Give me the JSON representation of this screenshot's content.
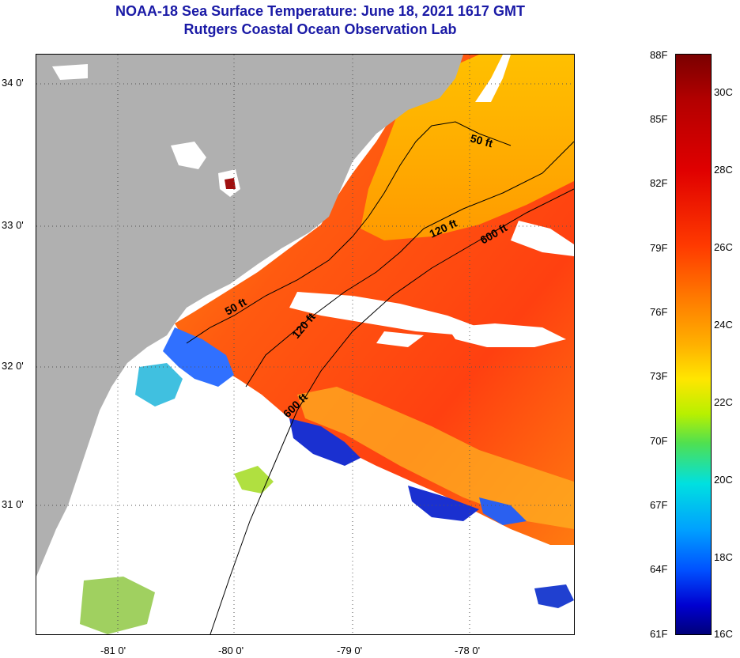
{
  "title": {
    "line1": "NOAA-18 Sea Surface Temperature:  June 18, 2021 1617 GMT",
    "line2": "Rutgers Coastal Ocean Observation Lab"
  },
  "map": {
    "lat_labels": [
      "34 0'",
      "33 0'",
      "32 0'",
      "31 0'"
    ],
    "lon_labels": [
      "-81 0'",
      "-80 0'",
      "-79 0'",
      "-78 0'"
    ],
    "contour_labels": {
      "north_50": "50 ft",
      "north_120": "120 ft",
      "north_600": "600 ft",
      "south_50": "50 ft",
      "south_120": "120 ft",
      "south_600": "600 ft"
    },
    "colors": {
      "land": "#b0b0b0",
      "cloud": "#ffffff",
      "warm_water": "#ff6a10",
      "cool_water": "#2060ff"
    }
  },
  "colorbar": {
    "fahrenheit": [
      "88F",
      "85F",
      "82F",
      "79F",
      "76F",
      "73F",
      "70F",
      "67F",
      "64F",
      "61F"
    ],
    "celsius": [
      "30C",
      "28C",
      "26C",
      "24C",
      "22C",
      "20C",
      "18C",
      "16C"
    ]
  }
}
